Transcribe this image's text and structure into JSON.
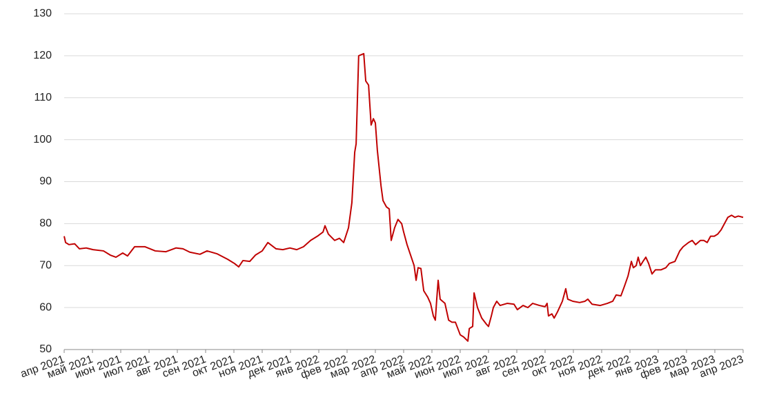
{
  "chart_data": {
    "type": "line",
    "color": "#c00000",
    "grid": true,
    "xlim": [
      0,
      24
    ],
    "ylim": [
      50,
      130
    ],
    "yticks": [
      50,
      60,
      70,
      80,
      90,
      100,
      110,
      120,
      130
    ],
    "xticks": [
      {
        "value": 0,
        "label": "апр 2021"
      },
      {
        "value": 1,
        "label": "май 2021"
      },
      {
        "value": 2,
        "label": "июн 2021"
      },
      {
        "value": 3,
        "label": "июл 2021"
      },
      {
        "value": 4,
        "label": "авг 2021"
      },
      {
        "value": 5,
        "label": "сен 2021"
      },
      {
        "value": 6,
        "label": "окт 2021"
      },
      {
        "value": 7,
        "label": "ноя 2021"
      },
      {
        "value": 8,
        "label": "дек 2021"
      },
      {
        "value": 9,
        "label": "янв 2022"
      },
      {
        "value": 10,
        "label": "фев 2022"
      },
      {
        "value": 11,
        "label": "мар 2022"
      },
      {
        "value": 12,
        "label": "апр 2022"
      },
      {
        "value": 13,
        "label": "май 2022"
      },
      {
        "value": 14,
        "label": "июн 2022"
      },
      {
        "value": 15,
        "label": "июл 2022"
      },
      {
        "value": 16,
        "label": "авг 2022"
      },
      {
        "value": 17,
        "label": "сен 2022"
      },
      {
        "value": 18,
        "label": "окт 2022"
      },
      {
        "value": 19,
        "label": "ноя 2022"
      },
      {
        "value": 20,
        "label": "дек 2022"
      },
      {
        "value": 21,
        "label": "янв 2023"
      },
      {
        "value": 22,
        "label": "фев 2023"
      },
      {
        "value": 23,
        "label": "мар 2023"
      },
      {
        "value": 24,
        "label": "апр 2023"
      }
    ],
    "x": [
      0,
      0.05,
      0.17,
      0.37,
      0.54,
      0.78,
      1.02,
      1.39,
      1.63,
      1.83,
      2.07,
      2.24,
      2.49,
      2.85,
      3.22,
      3.59,
      3.95,
      4.2,
      4.44,
      4.8,
      5.05,
      5.41,
      5.78,
      6.02,
      6.17,
      6.32,
      6.56,
      6.76,
      7,
      7.2,
      7.49,
      7.73,
      7.98,
      8.22,
      8.46,
      8.71,
      8.95,
      9.15,
      9.22,
      9.34,
      9.56,
      9.73,
      9.88,
      10.05,
      10.17,
      10.27,
      10.32,
      10.41,
      10.59,
      10.66,
      10.76,
      10.85,
      10.93,
      11,
      11.07,
      11.2,
      11.27,
      11.39,
      11.49,
      11.56,
      11.68,
      11.8,
      11.93,
      12,
      12.12,
      12.27,
      12.37,
      12.44,
      12.51,
      12.61,
      12.71,
      12.85,
      12.95,
      13.05,
      13.12,
      13.17,
      13.22,
      13.29,
      13.46,
      13.59,
      13.71,
      13.83,
      14,
      14.12,
      14.27,
      14.32,
      14.44,
      14.49,
      14.61,
      14.76,
      14.93,
      15,
      15.1,
      15.17,
      15.29,
      15.41,
      15.66,
      15.9,
      16.02,
      16.22,
      16.39,
      16.56,
      16.8,
      17,
      17.07,
      17.12,
      17.24,
      17.32,
      17.44,
      17.61,
      17.73,
      17.8,
      17.98,
      18.22,
      18.41,
      18.51,
      18.66,
      18.95,
      19.2,
      19.39,
      19.51,
      19.68,
      19.8,
      19.93,
      20.05,
      20.12,
      20.22,
      20.29,
      20.37,
      20.46,
      20.56,
      20.66,
      20.78,
      20.9,
      21.1,
      21.27,
      21.39,
      21.59,
      21.76,
      21.88,
      22.07,
      22.2,
      22.32,
      22.49,
      22.61,
      22.73,
      22.85,
      22.98,
      23.1,
      23.22,
      23.34,
      23.46,
      23.59,
      23.71,
      23.83,
      24
    ],
    "values": [
      77,
      75.5,
      75,
      75.2,
      74,
      74.2,
      73.8,
      73.5,
      72.5,
      72,
      73,
      72.3,
      74.5,
      74.5,
      73.5,
      73.3,
      74.2,
      74,
      73.2,
      72.7,
      73.5,
      72.8,
      71.5,
      70.5,
      69.7,
      71.2,
      71,
      72.5,
      73.5,
      75.5,
      74,
      73.8,
      74.2,
      73.8,
      74.5,
      76,
      77,
      78,
      79.5,
      77.5,
      76,
      76.5,
      75.5,
      79,
      85,
      97,
      99,
      120,
      120.5,
      114,
      113,
      103.5,
      105,
      104,
      97.5,
      89,
      85.5,
      84,
      83.5,
      76,
      79,
      81,
      80,
      78,
      75,
      72,
      70,
      66.5,
      69.5,
      69.3,
      64,
      62.5,
      61,
      58,
      57,
      62,
      66.5,
      62,
      61,
      57,
      56.5,
      56.5,
      53.5,
      53,
      52,
      55,
      55.5,
      63.5,
      60,
      57.5,
      56,
      55.5,
      58,
      60,
      61.5,
      60.5,
      61,
      60.8,
      59.5,
      60.5,
      60,
      61,
      60.5,
      60.2,
      61,
      58,
      58.5,
      57.5,
      59,
      61.5,
      64.5,
      62,
      61.5,
      61.2,
      61.5,
      62,
      60.8,
      60.5,
      61,
      61.5,
      63,
      62.8,
      65,
      67.5,
      71,
      69.5,
      70,
      72,
      70,
      71,
      72,
      70.5,
      68,
      69,
      69,
      69.5,
      70.5,
      71,
      73.5,
      74.5,
      75.5,
      76,
      75,
      76,
      76,
      75.5,
      77,
      77,
      77.5,
      78.5,
      80,
      81.5,
      82,
      81.5,
      81.8,
      81.5
    ]
  }
}
